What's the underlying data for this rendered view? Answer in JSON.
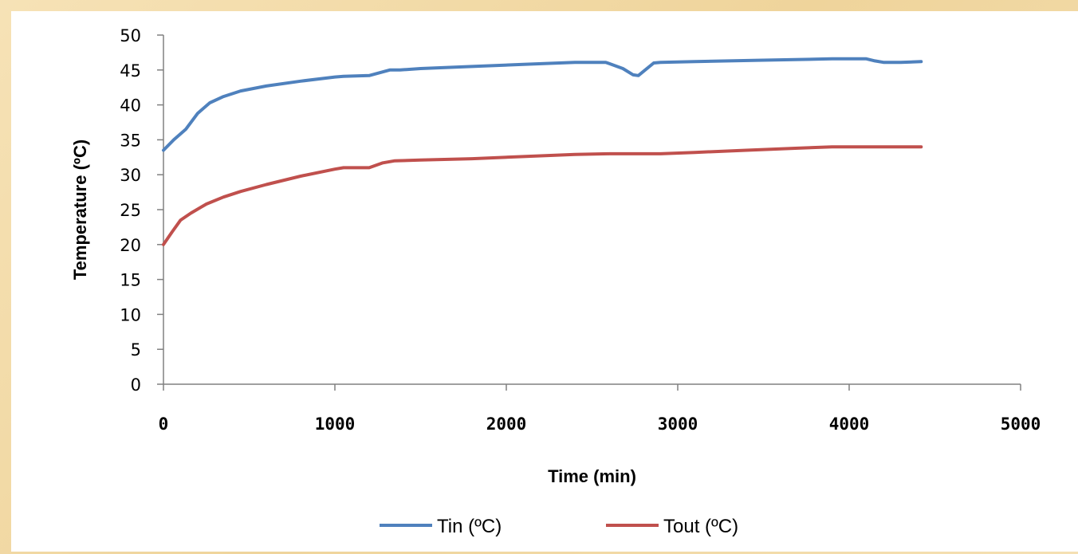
{
  "chart_data": {
    "type": "line",
    "title": "",
    "xlabel": "Time (min)",
    "ylabel": "Temperature (ºC)",
    "xlim": [
      0,
      5000
    ],
    "ylim": [
      0,
      50
    ],
    "xticks": [
      "0",
      "1000",
      "2000",
      "3000",
      "4000",
      "5000"
    ],
    "yticks": [
      "0",
      "5",
      "10",
      "15",
      "20",
      "25",
      "30",
      "35",
      "40",
      "45",
      "50"
    ],
    "grid": false,
    "legend_position": "bottom",
    "series": [
      {
        "name": "Tin (ºC)",
        "color": "#4f81bd",
        "x": [
          0,
          60,
          130,
          200,
          270,
          350,
          450,
          600,
          800,
          1000,
          1050,
          1200,
          1320,
          1380,
          1500,
          1800,
          2100,
          2400,
          2580,
          2680,
          2740,
          2770,
          2800,
          2860,
          2900,
          3100,
          3500,
          3900,
          4100,
          4150,
          4200,
          4300,
          4420
        ],
        "y": [
          33.5,
          35,
          36.5,
          38.8,
          40.3,
          41.2,
          42,
          42.7,
          43.4,
          44,
          44.1,
          44.2,
          45,
          45,
          45.2,
          45.5,
          45.8,
          46.1,
          46.1,
          45.2,
          44.3,
          44.2,
          44.8,
          46,
          46.1,
          46.2,
          46.4,
          46.6,
          46.6,
          46.3,
          46.1,
          46.1,
          46.2
        ]
      },
      {
        "name": "Tout (ºC)",
        "color": "#c0504d",
        "x": [
          0,
          50,
          100,
          160,
          250,
          350,
          450,
          600,
          800,
          1000,
          1050,
          1200,
          1280,
          1350,
          1500,
          1800,
          2100,
          2400,
          2600,
          2800,
          2900,
          3100,
          3400,
          3700,
          3900,
          4100,
          4420
        ],
        "y": [
          20,
          21.8,
          23.5,
          24.5,
          25.8,
          26.8,
          27.6,
          28.6,
          29.8,
          30.8,
          31,
          31,
          31.7,
          32,
          32.1,
          32.3,
          32.6,
          32.9,
          33,
          33,
          33,
          33.2,
          33.5,
          33.8,
          34,
          34,
          34
        ]
      }
    ]
  }
}
